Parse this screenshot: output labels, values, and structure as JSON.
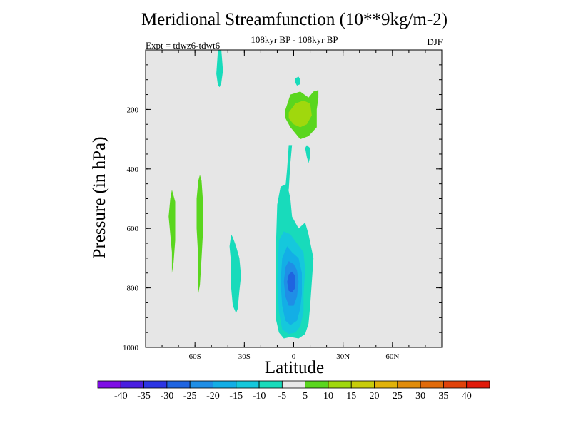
{
  "chart_data": {
    "type": "heatmap",
    "title": "Meridional Streamfunction (10**9kg/m-2)",
    "subtitle": "108kyr BP - 108kyr BP",
    "experiment_label": "Expt = tdwz6-tdwt6",
    "season": "DJF",
    "xlabel": "Latitude",
    "ylabel": "Pressure (in hPa)",
    "xlim": [
      -90,
      90
    ],
    "ylim": [
      1000,
      0
    ],
    "x_ticks": [
      {
        "value": -60,
        "label": "60S"
      },
      {
        "value": -30,
        "label": "30S"
      },
      {
        "value": 0,
        "label": "0"
      },
      {
        "value": 30,
        "label": "30N"
      },
      {
        "value": 60,
        "label": "60N"
      }
    ],
    "y_ticks": [
      {
        "value": 200,
        "label": "200"
      },
      {
        "value": 400,
        "label": "400"
      },
      {
        "value": 600,
        "label": "600"
      },
      {
        "value": 800,
        "label": "800"
      },
      {
        "value": 1000,
        "label": "1000"
      }
    ],
    "y_minor_step": 50,
    "x_minor_step": 10,
    "background_color": "#e6e6e6",
    "colorbar": {
      "labels": [
        "-40",
        "-35",
        "-30",
        "-25",
        "-20",
        "-15",
        "-10",
        "-5",
        "5",
        "10",
        "15",
        "20",
        "25",
        "30",
        "35",
        "40"
      ],
      "colors": [
        "#7f0ee6",
        "#4a1ee0",
        "#2c35e3",
        "#1f64e0",
        "#1f8ee6",
        "#13aee6",
        "#15c8dc",
        "#18dbbb",
        "#e8e8e8",
        "#5ad61e",
        "#a0d80d",
        "#c8cc0a",
        "#e0b20a",
        "#e08c0a",
        "#e06a0a",
        "#e0420a",
        "#e01a0a"
      ]
    },
    "regions": [
      {
        "value": -7,
        "points": [
          [
            -46,
            0
          ],
          [
            -44,
            0
          ],
          [
            -43,
            70
          ],
          [
            -44,
            110
          ],
          [
            -45,
            125
          ],
          [
            -46,
            120
          ],
          [
            -47,
            80
          ]
        ]
      },
      {
        "value": 7,
        "points": [
          [
            -72,
            510
          ],
          [
            -73,
            490
          ],
          [
            -74,
            470
          ],
          [
            -75,
            500
          ],
          [
            -76,
            560
          ],
          [
            -75,
            620
          ],
          [
            -74,
            680
          ],
          [
            -74,
            750
          ],
          [
            -73,
            715
          ],
          [
            -72,
            640
          ]
        ]
      },
      {
        "value": 7,
        "points": [
          [
            -56,
            440
          ],
          [
            -57,
            420
          ],
          [
            -58,
            440
          ],
          [
            -59,
            500
          ],
          [
            -59,
            600
          ],
          [
            -58,
            700
          ],
          [
            -58,
            820
          ],
          [
            -57,
            790
          ],
          [
            -56,
            700
          ],
          [
            -55,
            600
          ],
          [
            -55,
            520
          ]
        ]
      },
      {
        "value": -7,
        "points": [
          [
            -37,
            630
          ],
          [
            -38,
            620
          ],
          [
            -39,
            660
          ],
          [
            -38,
            720
          ],
          [
            -38,
            800
          ],
          [
            -37,
            860
          ],
          [
            -35,
            885
          ],
          [
            -34,
            870
          ],
          [
            -33,
            810
          ],
          [
            -32,
            760
          ],
          [
            -33,
            700
          ],
          [
            -35,
            660
          ]
        ]
      },
      {
        "value": 7,
        "points": [
          [
            -5,
            200
          ],
          [
            -2,
            150
          ],
          [
            4,
            140
          ],
          [
            9,
            160
          ],
          [
            12,
            140
          ],
          [
            15,
            135
          ],
          [
            15,
            160
          ],
          [
            14,
            200
          ],
          [
            14,
            260
          ],
          [
            9,
            290
          ],
          [
            4,
            300
          ],
          [
            -2,
            260
          ],
          [
            -5,
            230
          ]
        ]
      },
      {
        "value": 12,
        "points": [
          [
            -3,
            210
          ],
          [
            1,
            180
          ],
          [
            6,
            170
          ],
          [
            10,
            180
          ],
          [
            11,
            220
          ],
          [
            8,
            250
          ],
          [
            4,
            260
          ],
          [
            0,
            250
          ],
          [
            -3,
            230
          ]
        ]
      },
      {
        "value": -7,
        "points": [
          [
            1,
            95
          ],
          [
            3,
            90
          ],
          [
            4,
            100
          ],
          [
            4,
            115
          ],
          [
            2,
            120
          ],
          [
            1,
            110
          ]
        ]
      },
      {
        "value": -7,
        "points": [
          [
            7,
            330
          ],
          [
            8,
            320
          ],
          [
            10,
            330
          ],
          [
            10,
            360
          ],
          [
            9,
            380
          ],
          [
            8,
            360
          ]
        ]
      },
      {
        "value": -7,
        "points": [
          [
            -3,
            320
          ],
          [
            -1,
            320
          ],
          [
            -2,
            380
          ],
          [
            -3,
            470
          ],
          [
            -5,
            460
          ],
          [
            -4,
            400
          ]
        ]
      },
      {
        "value": -7,
        "points": [
          [
            -10,
            520
          ],
          [
            -8,
            460
          ],
          [
            -4,
            450
          ],
          [
            -2,
            500
          ],
          [
            -1,
            560
          ],
          [
            3,
            600
          ],
          [
            7,
            580
          ],
          [
            9,
            620
          ],
          [
            12,
            700
          ],
          [
            11,
            780
          ],
          [
            10,
            860
          ],
          [
            9,
            920
          ],
          [
            7,
            955
          ],
          [
            3,
            970
          ],
          [
            -2,
            965
          ],
          [
            -6,
            970
          ],
          [
            -9,
            950
          ],
          [
            -11,
            900
          ],
          [
            -11,
            800
          ],
          [
            -11,
            700
          ]
        ]
      },
      {
        "value": -12,
        "points": [
          [
            -9,
            640
          ],
          [
            -6,
            610
          ],
          [
            -2,
            620
          ],
          [
            2,
            650
          ],
          [
            6,
            680
          ],
          [
            7,
            740
          ],
          [
            6,
            820
          ],
          [
            6,
            880
          ],
          [
            4,
            930
          ],
          [
            1,
            950
          ],
          [
            -3,
            955
          ],
          [
            -7,
            940
          ],
          [
            -9,
            880
          ],
          [
            -10,
            780
          ]
        ]
      },
      {
        "value": -17,
        "points": [
          [
            -7,
            700
          ],
          [
            -4,
            660
          ],
          [
            -1,
            680
          ],
          [
            3,
            700
          ],
          [
            5,
            750
          ],
          [
            5,
            820
          ],
          [
            4,
            870
          ],
          [
            2,
            910
          ],
          [
            -2,
            925
          ],
          [
            -5,
            910
          ],
          [
            -7,
            860
          ],
          [
            -8,
            780
          ]
        ]
      },
      {
        "value": -22,
        "points": [
          [
            -5,
            730
          ],
          [
            -3,
            710
          ],
          [
            0,
            720
          ],
          [
            2,
            740
          ],
          [
            3,
            780
          ],
          [
            2,
            830
          ],
          [
            0,
            860
          ],
          [
            -3,
            860
          ],
          [
            -5,
            830
          ],
          [
            -6,
            780
          ]
        ]
      },
      {
        "value": -27,
        "points": [
          [
            -3,
            755
          ],
          [
            -1,
            745
          ],
          [
            1,
            760
          ],
          [
            1,
            800
          ],
          [
            -1,
            815
          ],
          [
            -3,
            810
          ],
          [
            -4,
            780
          ]
        ]
      }
    ]
  }
}
